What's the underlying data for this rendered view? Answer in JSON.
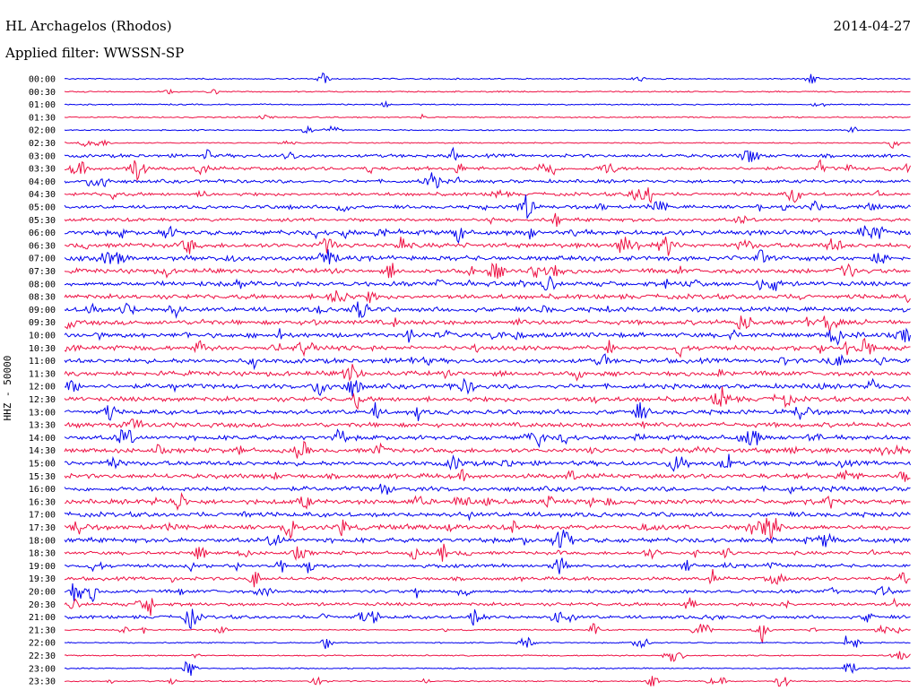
{
  "header": {
    "station": "HL Archagelos (Rhodos)",
    "date": "2014-04-27",
    "filter": "Applied filter: WWSSN-SP"
  },
  "chart_data": {
    "type": "line",
    "title": "HL Archagelos (Rhodos)",
    "ylabel": "HHZ - 50000",
    "xlabel": "",
    "row_labels": [
      "00:00",
      "00:30",
      "01:00",
      "01:30",
      "02:00",
      "02:30",
      "03:00",
      "03:30",
      "04:00",
      "04:30",
      "05:00",
      "05:30",
      "06:00",
      "06:30",
      "07:00",
      "07:30",
      "08:00",
      "08:30",
      "09:00",
      "09:30",
      "10:00",
      "10:30",
      "11:00",
      "11:30",
      "12:00",
      "12:30",
      "13:00",
      "13:30",
      "14:00",
      "14:30",
      "15:00",
      "15:30",
      "16:00",
      "16:30",
      "17:00",
      "17:30",
      "18:00",
      "18:30",
      "19:00",
      "19:30",
      "20:00",
      "20:30",
      "21:00",
      "21:30",
      "22:00",
      "22:30",
      "23:00",
      "23:30"
    ],
    "colors": [
      "#0000ee",
      "#ee1144"
    ],
    "grid": false
  }
}
